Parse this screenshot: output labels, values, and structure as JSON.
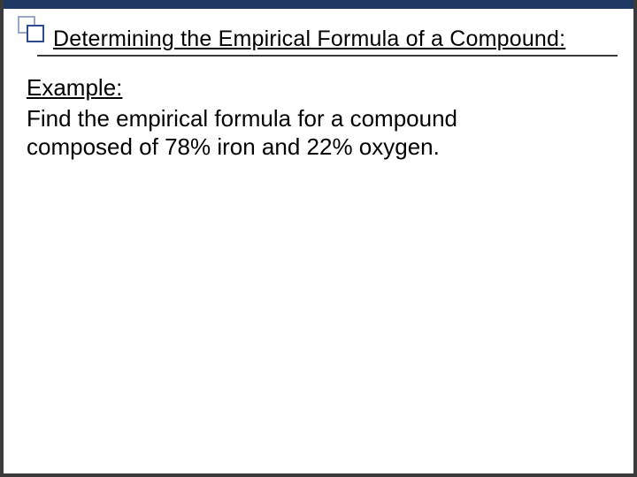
{
  "slide": {
    "title": "Determining the Empirical Formula of a Compound:",
    "example_label": "Example:",
    "body_line1": "Find the empirical formula for a compound",
    "body_line2": "composed of 78% iron and 22% oxygen."
  },
  "style": {
    "top_bar_color": "#1f3864",
    "square_outer_border": "#9aa8c8",
    "square_inner_border": "#2e4b8f",
    "title_fontsize": 25,
    "body_fontsize": 26,
    "text_color": "#000000",
    "background_color": "#ffffff",
    "frame_border_color": "#3a3a3a"
  }
}
